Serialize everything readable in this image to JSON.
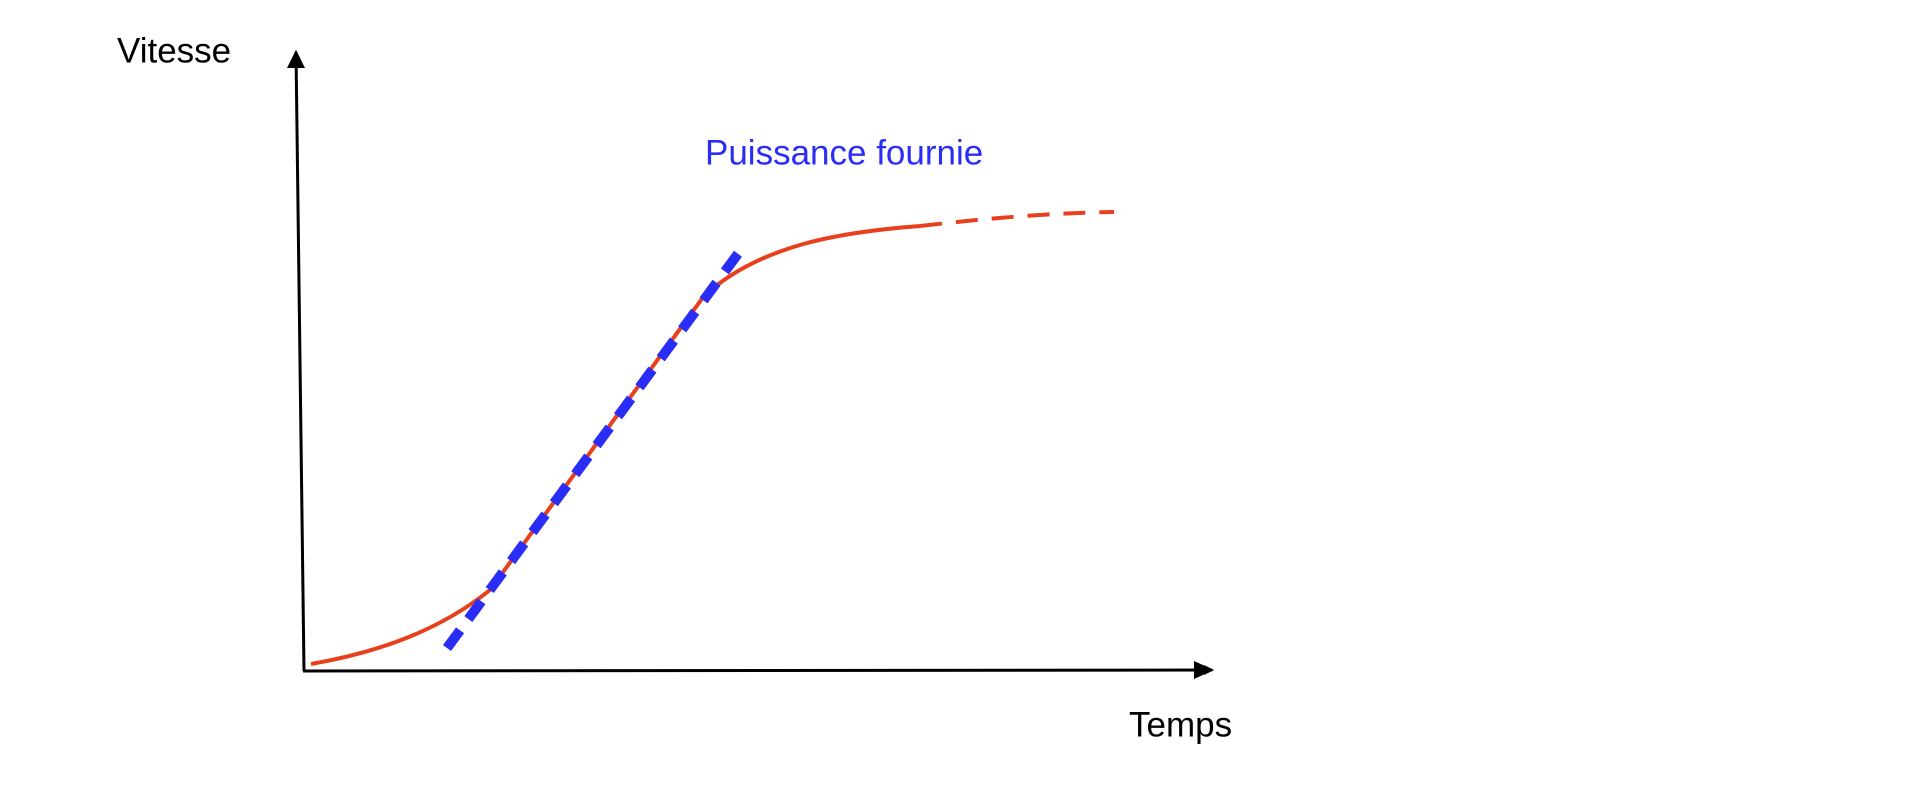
{
  "labels": {
    "y_axis": "Vitesse",
    "x_axis": "Temps",
    "annotation": "Puissance fournie"
  }
}
